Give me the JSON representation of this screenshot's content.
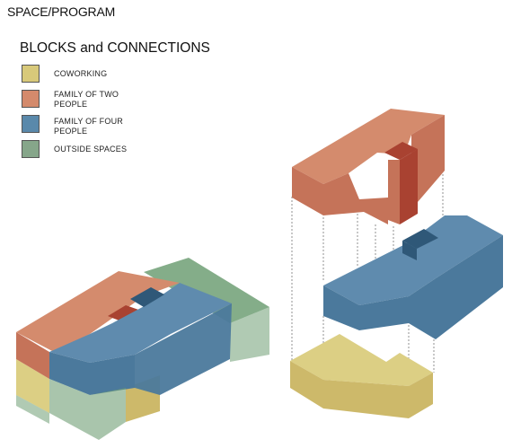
{
  "page": {
    "title": "SPACE/PROGRAM"
  },
  "legend": {
    "title": "BLOCKS and CONNECTIONS",
    "items": [
      {
        "name": "coworking",
        "label": "COWORKING",
        "color": "#d8c97a"
      },
      {
        "name": "family-of-two",
        "label": "FAMILY OF TWO\nPEOPLE",
        "color": "#d48a6c"
      },
      {
        "name": "family-of-four",
        "label": "FAMILY OF FOUR\nPEOPLE",
        "color": "#5a89ab"
      },
      {
        "name": "outside-spaces",
        "label": "OUTSIDE SPACES",
        "color": "#86a68a"
      }
    ]
  },
  "colors": {
    "coworking_top": "#dccf84",
    "coworking_side": "#cdb96a",
    "family_two_top": "#d48b6d",
    "family_two_side": "#c57359",
    "family_two_core": "#a94231",
    "family_four_top": "#5f8bae",
    "family_four_side": "#4b799c",
    "family_four_dark": "#2f5878",
    "outside_green": "#6f9f74",
    "connector_line": "#777777"
  }
}
